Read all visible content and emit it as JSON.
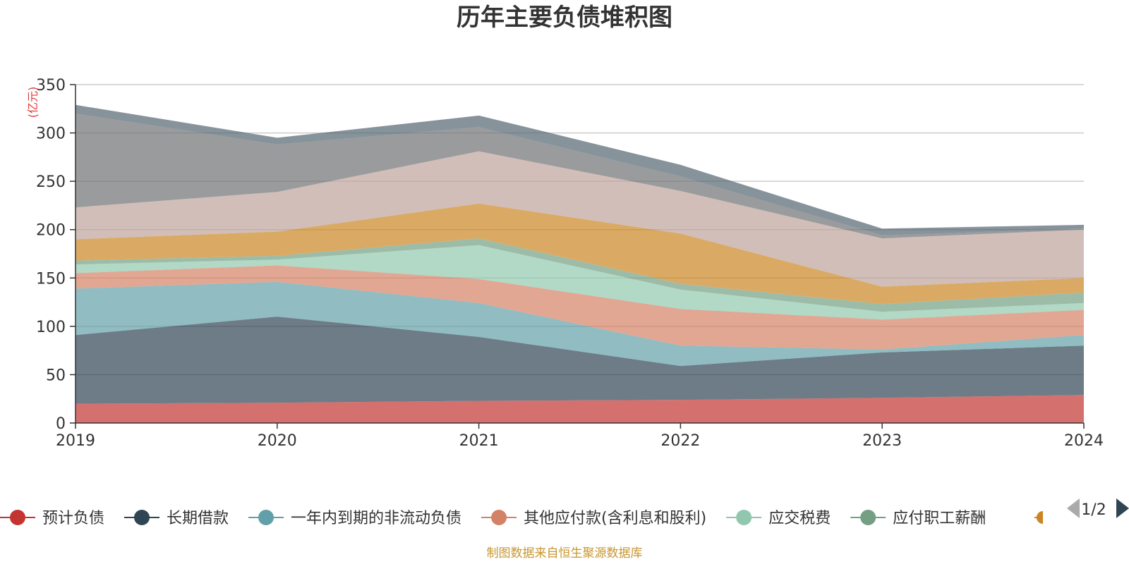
{
  "chart_data": {
    "type": "area",
    "stacked": true,
    "title": "历年主要负债堆积图",
    "unit_label": "(亿元)",
    "x": [
      "2019",
      "2020",
      "2021",
      "2022",
      "2023",
      "2024"
    ],
    "ylim": [
      0,
      350
    ],
    "yticks": [
      0,
      50,
      100,
      150,
      200,
      250,
      300,
      350
    ],
    "grid": true,
    "legend_position": "bottom",
    "series": [
      {
        "name": "预计负债",
        "color": "#c23531",
        "values": [
          20,
          21,
          23,
          24,
          26,
          29
        ]
      },
      {
        "name": "长期借款",
        "color": "#2f4554",
        "values": [
          71,
          89,
          66,
          35,
          47,
          51
        ]
      },
      {
        "name": "一年内到期的非流动负债",
        "color": "#61a0a8",
        "values": [
          48,
          36,
          35,
          21,
          3,
          11
        ]
      },
      {
        "name": "其他应付款(含利息和股利)",
        "color": "#d48265",
        "values": [
          16,
          17,
          25,
          38,
          31,
          26
        ]
      },
      {
        "name": "应交税费",
        "color": "#91c7ae",
        "values": [
          9,
          6,
          35,
          20,
          8,
          7
        ]
      },
      {
        "name": "应付职工薪酬",
        "color": "#749f83",
        "values": [
          4,
          4,
          7,
          6,
          8,
          11
        ]
      },
      {
        "name": "",
        "color": "#ca8622",
        "values": [
          22,
          25,
          36,
          52,
          18,
          15
        ]
      },
      {
        "name": "",
        "color": "#bda29a",
        "values": [
          33,
          41,
          54,
          44,
          50,
          50
        ]
      },
      {
        "name": "",
        "color": "#6e7074",
        "values": [
          97,
          49,
          25,
          15,
          3,
          1
        ]
      },
      {
        "name": "",
        "color": "#546570",
        "values": [
          9,
          7,
          12,
          12,
          7,
          4
        ]
      }
    ],
    "legend_visible": [
      {
        "name": "预计负债",
        "color": "#c23531"
      },
      {
        "name": "长期借款",
        "color": "#2f4554"
      },
      {
        "name": "一年内到期的非流动负债",
        "color": "#61a0a8"
      },
      {
        "name": "其他应付款(含利息和股利)",
        "color": "#d48265"
      },
      {
        "name": "应交税费",
        "color": "#91c7ae"
      },
      {
        "name": "应付职工薪酬",
        "color": "#749f83"
      }
    ],
    "legend_next_color": "#ca8622",
    "legend_page": "1/2",
    "source_note": "制图数据来自恒生聚源数据库"
  }
}
